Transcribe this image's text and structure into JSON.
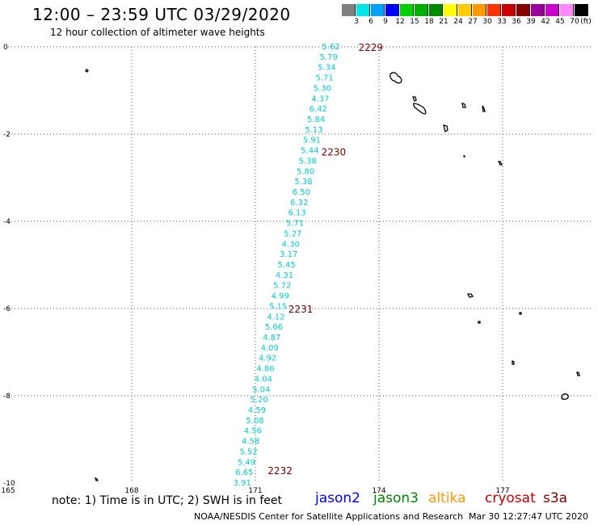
{
  "header": {
    "title": "12:00 – 23:59 UTC 03/29/2020",
    "subtitle": "12 hour collection of altimeter wave heights"
  },
  "color_scale": {
    "colors": [
      "#808080",
      "#00e5e5",
      "#00a0ff",
      "#0000ff",
      "#00d000",
      "#00b000",
      "#008800",
      "#ffff00",
      "#ffcc00",
      "#ff9900",
      "#ff3300",
      "#cc0000",
      "#880000",
      "#990099",
      "#cc00cc",
      "#ff88ff",
      "#000000"
    ],
    "ticks": [
      "3",
      "6",
      "9",
      "12",
      "15",
      "18",
      "21",
      "24",
      "27",
      "30",
      "33",
      "36",
      "39",
      "42",
      "45",
      "70"
    ],
    "unit": "(ft)"
  },
  "chart_data": {
    "type": "scatter",
    "x_axis": {
      "range": [
        165,
        180
      ],
      "ticks": [
        "165",
        "168",
        "171",
        "174",
        "177"
      ]
    },
    "y_axis": {
      "range": [
        -10,
        0
      ],
      "ticks": [
        "0",
        "-2",
        "-4",
        "-6",
        "-8",
        "-10"
      ]
    },
    "grid": "dotted",
    "swh_labels": [
      "5.62",
      "5.79",
      "5.34",
      "5.71",
      "5.30",
      "4.37",
      "6.42",
      "5.84",
      "5.13",
      "5.91",
      "5.44",
      "5.38",
      "5.80",
      "5.38",
      "6.50",
      "6.32",
      "6.13",
      "5.71",
      "5.27",
      "4.30",
      "3.17",
      "5.45",
      "4.31",
      "5.72",
      "4.99",
      "5.15",
      "4.12",
      "5.66",
      "4.87",
      "4.09",
      "4.92",
      "4.86",
      "4.04",
      "5.04",
      "5.20",
      "4.59",
      "5.08",
      "4.56",
      "4.58",
      "5.52",
      "5.49",
      "6.65",
      "3.91"
    ],
    "track_start": [
      173.05,
      0
    ],
    "track_end": [
      170.9,
      -10
    ],
    "time_labels": [
      {
        "text": "2229",
        "lon": 173.5,
        "lat": 0
      },
      {
        "text": "2230",
        "lon": 172.6,
        "lat": -2.4
      },
      {
        "text": "2231",
        "lon": 171.8,
        "lat": -6.0
      },
      {
        "text": "2232",
        "lon": 171.3,
        "lat": -9.7
      }
    ]
  },
  "footer": {
    "note": "note:  1) Time is in UTC;  2) SWH is in feet",
    "satellites": [
      {
        "name": "jason2",
        "color": "#0000ff"
      },
      {
        "name": "jason3",
        "color": "#008800"
      },
      {
        "name": "altika",
        "color": "#ff9900"
      },
      {
        "name": "cryosat",
        "color": "#cc0000"
      },
      {
        "name": "s3a",
        "color": "#880000"
      }
    ],
    "credit": "NOAA/NESDIS Center for Satellite Applications and Research",
    "timestamp": "Mar 30 12:27:47 UTC 2020"
  }
}
